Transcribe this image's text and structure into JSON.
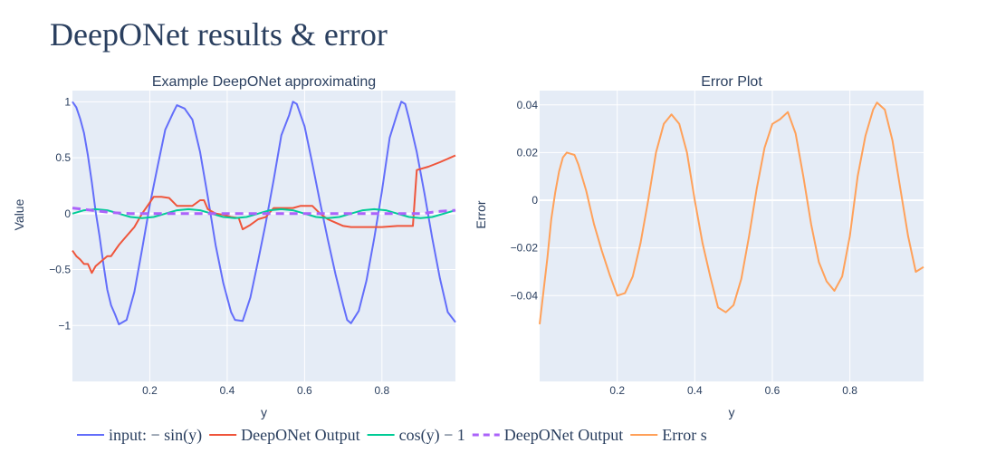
{
  "title": "DeepONet results & error",
  "chart_data": [
    {
      "type": "line",
      "title": "Example DeepONet approximating",
      "xlabel": "y",
      "ylabel": "Value",
      "xlim": [
        0,
        0.99
      ],
      "ylim": [
        -1.5,
        1.1
      ],
      "x_ticks": [
        0.2,
        0.4,
        0.6,
        0.8
      ],
      "x_tick_labels": [
        "0.2",
        "0.4",
        "0.6",
        "0.8"
      ],
      "y_ticks": [
        1,
        0.5,
        0,
        -0.5,
        -1
      ],
      "y_tick_labels": [
        "1",
        "0.5",
        "0",
        "−0.5",
        "−1"
      ],
      "grid": true,
      "series": [
        {
          "name": "input: − sin(y)",
          "color": "#636efa",
          "dash": "solid",
          "points": [
            [
              0.0,
              1.0
            ],
            [
              0.01,
              0.95
            ],
            [
              0.02,
              0.85
            ],
            [
              0.03,
              0.72
            ],
            [
              0.04,
              0.52
            ],
            [
              0.05,
              0.28
            ],
            [
              0.06,
              0.02
            ],
            [
              0.07,
              -0.2
            ],
            [
              0.08,
              -0.45
            ],
            [
              0.09,
              -0.68
            ],
            [
              0.1,
              -0.82
            ],
            [
              0.11,
              -0.9
            ],
            [
              0.12,
              -0.99
            ],
            [
              0.14,
              -0.95
            ],
            [
              0.16,
              -0.7
            ],
            [
              0.18,
              -0.32
            ],
            [
              0.2,
              0.08
            ],
            [
              0.22,
              0.42
            ],
            [
              0.24,
              0.75
            ],
            [
              0.26,
              0.9
            ],
            [
              0.27,
              0.97
            ],
            [
              0.29,
              0.94
            ],
            [
              0.31,
              0.84
            ],
            [
              0.33,
              0.55
            ],
            [
              0.35,
              0.15
            ],
            [
              0.37,
              -0.28
            ],
            [
              0.39,
              -0.62
            ],
            [
              0.41,
              -0.88
            ],
            [
              0.42,
              -0.95
            ],
            [
              0.44,
              -0.96
            ],
            [
              0.46,
              -0.75
            ],
            [
              0.48,
              -0.42
            ],
            [
              0.5,
              -0.08
            ],
            [
              0.52,
              0.3
            ],
            [
              0.54,
              0.7
            ],
            [
              0.56,
              0.88
            ],
            [
              0.57,
              1.0
            ],
            [
              0.58,
              0.98
            ],
            [
              0.6,
              0.78
            ],
            [
              0.62,
              0.45
            ],
            [
              0.64,
              0.1
            ],
            [
              0.66,
              -0.23
            ],
            [
              0.68,
              -0.54
            ],
            [
              0.7,
              -0.82
            ],
            [
              0.71,
              -0.95
            ],
            [
              0.72,
              -0.98
            ],
            [
              0.74,
              -0.87
            ],
            [
              0.76,
              -0.6
            ],
            [
              0.78,
              -0.22
            ],
            [
              0.8,
              0.2
            ],
            [
              0.82,
              0.68
            ],
            [
              0.84,
              0.9
            ],
            [
              0.85,
              1.0
            ],
            [
              0.86,
              0.98
            ],
            [
              0.87,
              0.85
            ],
            [
              0.89,
              0.55
            ],
            [
              0.91,
              0.18
            ],
            [
              0.93,
              -0.22
            ],
            [
              0.95,
              -0.58
            ],
            [
              0.97,
              -0.88
            ],
            [
              0.99,
              -0.97
            ]
          ]
        },
        {
          "name": "DeepONet Output",
          "color": "#ef553b",
          "dash": "solid",
          "points": [
            [
              0.0,
              -0.33
            ],
            [
              0.01,
              -0.38
            ],
            [
              0.02,
              -0.41
            ],
            [
              0.03,
              -0.45
            ],
            [
              0.04,
              -0.45
            ],
            [
              0.05,
              -0.53
            ],
            [
              0.06,
              -0.47
            ],
            [
              0.08,
              -0.41
            ],
            [
              0.09,
              -0.38
            ],
            [
              0.1,
              -0.38
            ],
            [
              0.12,
              -0.28
            ],
            [
              0.14,
              -0.2
            ],
            [
              0.16,
              -0.12
            ],
            [
              0.18,
              0.0
            ],
            [
              0.2,
              0.1
            ],
            [
              0.21,
              0.15
            ],
            [
              0.23,
              0.15
            ],
            [
              0.25,
              0.14
            ],
            [
              0.27,
              0.07
            ],
            [
              0.29,
              0.07
            ],
            [
              0.31,
              0.07
            ],
            [
              0.33,
              0.12
            ],
            [
              0.34,
              0.12
            ],
            [
              0.35,
              0.04
            ],
            [
              0.37,
              0.0
            ],
            [
              0.39,
              -0.01
            ],
            [
              0.41,
              -0.03
            ],
            [
              0.43,
              -0.04
            ],
            [
              0.44,
              -0.14
            ],
            [
              0.46,
              -0.1
            ],
            [
              0.48,
              -0.05
            ],
            [
              0.5,
              -0.03
            ],
            [
              0.52,
              0.05
            ],
            [
              0.55,
              0.05
            ],
            [
              0.57,
              0.05
            ],
            [
              0.59,
              0.07
            ],
            [
              0.62,
              0.07
            ],
            [
              0.64,
              0.0
            ],
            [
              0.66,
              -0.05
            ],
            [
              0.68,
              -0.08
            ],
            [
              0.7,
              -0.11
            ],
            [
              0.72,
              -0.12
            ],
            [
              0.76,
              -0.12
            ],
            [
              0.8,
              -0.12
            ],
            [
              0.84,
              -0.11
            ],
            [
              0.88,
              -0.11
            ],
            [
              0.89,
              0.39
            ],
            [
              0.92,
              0.42
            ],
            [
              0.95,
              0.46
            ],
            [
              0.99,
              0.52
            ]
          ]
        },
        {
          "name": "cos(y) − 1",
          "color": "#00cc96",
          "dash": "solid",
          "points": [
            [
              0.0,
              0.0
            ],
            [
              0.03,
              0.03
            ],
            [
              0.06,
              0.04
            ],
            [
              0.09,
              0.03
            ],
            [
              0.12,
              0.0
            ],
            [
              0.15,
              -0.03
            ],
            [
              0.18,
              -0.04
            ],
            [
              0.21,
              -0.03
            ],
            [
              0.24,
              0.0
            ],
            [
              0.27,
              0.03
            ],
            [
              0.3,
              0.04
            ],
            [
              0.33,
              0.03
            ],
            [
              0.36,
              0.0
            ],
            [
              0.39,
              -0.03
            ],
            [
              0.42,
              -0.04
            ],
            [
              0.45,
              -0.03
            ],
            [
              0.48,
              0.0
            ],
            [
              0.51,
              0.03
            ],
            [
              0.54,
              0.04
            ],
            [
              0.57,
              0.03
            ],
            [
              0.6,
              0.0
            ],
            [
              0.63,
              -0.03
            ],
            [
              0.66,
              -0.04
            ],
            [
              0.69,
              -0.03
            ],
            [
              0.72,
              0.0
            ],
            [
              0.75,
              0.03
            ],
            [
              0.78,
              0.04
            ],
            [
              0.81,
              0.03
            ],
            [
              0.84,
              0.0
            ],
            [
              0.87,
              -0.03
            ],
            [
              0.9,
              -0.04
            ],
            [
              0.93,
              -0.03
            ],
            [
              0.96,
              0.0
            ],
            [
              0.99,
              0.03
            ]
          ]
        },
        {
          "name": "DeepONet Output",
          "color": "#ab63fa",
          "dash": "dash",
          "points": [
            [
              0.0,
              0.05
            ],
            [
              0.05,
              0.03
            ],
            [
              0.1,
              0.01
            ],
            [
              0.15,
              0.0
            ],
            [
              0.2,
              0.0
            ],
            [
              0.3,
              0.0
            ],
            [
              0.4,
              0.0
            ],
            [
              0.5,
              0.0
            ],
            [
              0.6,
              0.0
            ],
            [
              0.7,
              0.0
            ],
            [
              0.8,
              0.0
            ],
            [
              0.9,
              0.0
            ],
            [
              0.95,
              0.02
            ],
            [
              0.99,
              0.03
            ]
          ]
        }
      ]
    },
    {
      "type": "line",
      "title": "Error Plot",
      "xlabel": "y",
      "ylabel": "Error",
      "xlim": [
        0,
        0.99
      ],
      "ylim": [
        -0.076,
        0.046
      ],
      "x_ticks": [
        0.2,
        0.4,
        0.6,
        0.8
      ],
      "x_tick_labels": [
        "0.2",
        "0.4",
        "0.6",
        "0.8"
      ],
      "y_ticks": [
        0.04,
        0.02,
        0,
        -0.02,
        -0.04
      ],
      "y_tick_labels": [
        "0.04",
        "0.02",
        "0",
        "−0.02",
        "−0.04"
      ],
      "grid": true,
      "series": [
        {
          "name": "Error s",
          "color": "#ffa15a",
          "dash": "solid",
          "points": [
            [
              0.0,
              -0.052
            ],
            [
              0.01,
              -0.038
            ],
            [
              0.02,
              -0.024
            ],
            [
              0.03,
              -0.008
            ],
            [
              0.04,
              0.003
            ],
            [
              0.05,
              0.012
            ],
            [
              0.06,
              0.018
            ],
            [
              0.07,
              0.02
            ],
            [
              0.09,
              0.019
            ],
            [
              0.1,
              0.015
            ],
            [
              0.12,
              0.004
            ],
            [
              0.14,
              -0.01
            ],
            [
              0.16,
              -0.021
            ],
            [
              0.18,
              -0.031
            ],
            [
              0.2,
              -0.04
            ],
            [
              0.22,
              -0.039
            ],
            [
              0.24,
              -0.032
            ],
            [
              0.26,
              -0.018
            ],
            [
              0.28,
              0.0
            ],
            [
              0.3,
              0.02
            ],
            [
              0.32,
              0.032
            ],
            [
              0.34,
              0.036
            ],
            [
              0.36,
              0.032
            ],
            [
              0.38,
              0.02
            ],
            [
              0.4,
              0.0
            ],
            [
              0.42,
              -0.018
            ],
            [
              0.44,
              -0.032
            ],
            [
              0.46,
              -0.045
            ],
            [
              0.48,
              -0.047
            ],
            [
              0.5,
              -0.044
            ],
            [
              0.52,
              -0.033
            ],
            [
              0.54,
              -0.015
            ],
            [
              0.56,
              0.005
            ],
            [
              0.58,
              0.022
            ],
            [
              0.6,
              0.032
            ],
            [
              0.62,
              0.034
            ],
            [
              0.64,
              0.037
            ],
            [
              0.66,
              0.028
            ],
            [
              0.68,
              0.01
            ],
            [
              0.7,
              -0.01
            ],
            [
              0.72,
              -0.026
            ],
            [
              0.74,
              -0.034
            ],
            [
              0.76,
              -0.038
            ],
            [
              0.78,
              -0.032
            ],
            [
              0.8,
              -0.015
            ],
            [
              0.82,
              0.01
            ],
            [
              0.84,
              0.027
            ],
            [
              0.86,
              0.038
            ],
            [
              0.87,
              0.041
            ],
            [
              0.89,
              0.038
            ],
            [
              0.91,
              0.025
            ],
            [
              0.93,
              0.005
            ],
            [
              0.95,
              -0.015
            ],
            [
              0.97,
              -0.03
            ],
            [
              0.99,
              -0.028
            ]
          ]
        }
      ]
    }
  ],
  "legend": {
    "placement": "bottom-left",
    "items": [
      {
        "label": "input: − sin(y)",
        "color": "#636efa",
        "dash": "solid"
      },
      {
        "label": "DeepONet Output",
        "color": "#ef553b",
        "dash": "solid"
      },
      {
        "label": "cos(y) − 1",
        "color": "#00cc96",
        "dash": "solid"
      },
      {
        "label": "DeepONet Output",
        "color": "#ab63fa",
        "dash": "dash"
      },
      {
        "label": "Error s",
        "color": "#ffa15a",
        "dash": "solid"
      }
    ]
  },
  "colors": {
    "plot_bg": "#e5ecf6",
    "grid": "#ffffff",
    "text": "#2a3f5f"
  }
}
